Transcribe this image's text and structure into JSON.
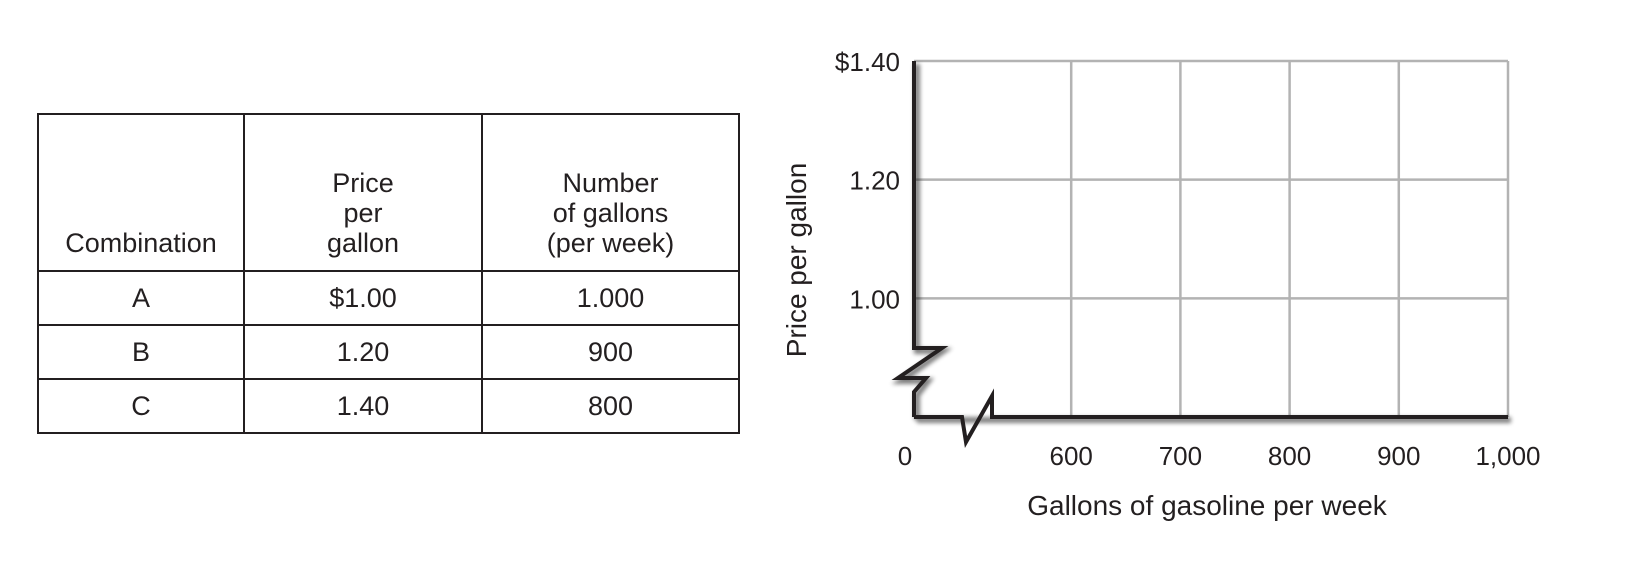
{
  "table": {
    "headers": [
      "Combination",
      "Price\nper\ngallon",
      "Number\nof gallons\n(per week)"
    ],
    "rows": [
      [
        "A",
        "$1.00",
        "1.000"
      ],
      [
        "B",
        "1.20",
        "900"
      ],
      [
        "C",
        "1.40",
        "800"
      ]
    ]
  },
  "chart_data": {
    "type": "line",
    "x": [],
    "series": [],
    "xlabel": "Gallons of gasoline per week",
    "ylabel": "Price per gallon",
    "xlim": [
      500,
      1000
    ],
    "ylim": [
      0.8,
      1.4
    ],
    "x_ticks": [
      {
        "value": 0,
        "label": "0",
        "axis_break": true
      },
      {
        "value": 600,
        "label": "600"
      },
      {
        "value": 700,
        "label": "700"
      },
      {
        "value": 800,
        "label": "800"
      },
      {
        "value": 900,
        "label": "900"
      },
      {
        "value": 1000,
        "label": "1,000"
      }
    ],
    "y_ticks": [
      {
        "value": 1.0,
        "label": "1.00"
      },
      {
        "value": 1.2,
        "label": "1.20"
      },
      {
        "value": 1.4,
        "label": "$1.40"
      }
    ],
    "grid": true,
    "axis_breaks": [
      "x",
      "y"
    ],
    "colors": {
      "axis": "#231f20",
      "grid": "#b3b3b3",
      "text": "#231f20"
    }
  }
}
